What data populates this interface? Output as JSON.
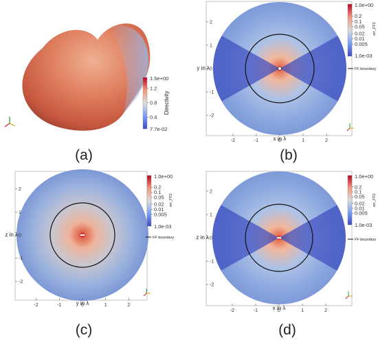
{
  "chart_data": [
    {
      "id": "a",
      "panel_label": "(a)",
      "type": "heatmap",
      "colorbar": {
        "title": "Directivity",
        "max_label": "1.5e+00",
        "min_label": "7.7e-02",
        "ticks": [
          "1.2",
          "0.8",
          "0.4"
        ],
        "tick_values": [
          1.2,
          0.8,
          0.4
        ],
        "range": [
          0.077,
          1.5
        ],
        "scale": "linear"
      }
    },
    {
      "id": "b",
      "panel_label": "(b)",
      "type": "heatmap",
      "xlabel": "x in λ",
      "ylabel": "y in λ",
      "xticks": [
        "-2",
        "-1",
        "0",
        "1",
        "2"
      ],
      "yticks": [
        "2",
        "1",
        "0",
        "-1",
        "-2"
      ],
      "xlim": [
        -2.85,
        2.85
      ],
      "ylim": [
        -2.85,
        2.85
      ],
      "domain_radius": 2.85,
      "boundary_radius": 1.5,
      "pattern": "dipole-x",
      "legend_label": "FF boundary",
      "colorbar": {
        "title": "err_FF2",
        "max_label": "1.0e+00",
        "min_label": "1.0e-03",
        "ticks": [
          "0.2",
          "0.1",
          "0.05",
          "0.02",
          "0.01",
          "0.005"
        ],
        "tick_values": [
          0.2,
          0.1,
          0.05,
          0.02,
          0.01,
          0.005
        ],
        "range": [
          0.001,
          1.0
        ],
        "scale": "log"
      }
    },
    {
      "id": "c",
      "panel_label": "(c)",
      "type": "heatmap",
      "xlabel": "y in λ",
      "ylabel": "z in λ",
      "xticks": [
        "-2",
        "-1",
        "0",
        "1",
        "2"
      ],
      "yticks": [
        "2",
        "1",
        "0",
        "-1",
        "-2"
      ],
      "xlim": [
        -2.85,
        2.85
      ],
      "ylim": [
        -2.85,
        2.85
      ],
      "domain_radius": 2.85,
      "boundary_radius": 1.5,
      "pattern": "radial",
      "legend_label": "FF boundary",
      "colorbar": {
        "title": "err_FF2",
        "max_label": "1.0e+00",
        "min_label": "1.0e-03",
        "ticks": [
          "0.2",
          "0.1",
          "0.05",
          "0.02",
          "0.01",
          "0.005"
        ],
        "tick_values": [
          0.2,
          0.1,
          0.05,
          0.02,
          0.01,
          0.005
        ],
        "range": [
          0.001,
          1.0
        ],
        "scale": "log"
      }
    },
    {
      "id": "d",
      "panel_label": "(d)",
      "type": "heatmap",
      "xlabel": "x in λ",
      "ylabel": "z in λ",
      "xticks": [
        "-2",
        "-1",
        "0",
        "1",
        "2"
      ],
      "yticks": [
        "2",
        "1",
        "0",
        "-1",
        "-2"
      ],
      "xlim": [
        -2.85,
        2.85
      ],
      "ylim": [
        -2.85,
        2.85
      ],
      "domain_radius": 2.85,
      "boundary_radius": 1.5,
      "pattern": "dipole-x",
      "legend_label": "FF boundary",
      "colorbar": {
        "title": "err_FF2",
        "max_label": "1.0e+00",
        "min_label": "1.0e-03",
        "ticks": [
          "0.2",
          "0.1",
          "0.05",
          "0.02",
          "0.01",
          "0.005"
        ],
        "tick_values": [
          0.2,
          0.1,
          0.05,
          0.02,
          0.01,
          0.005
        ],
        "range": [
          0.001,
          1.0
        ],
        "scale": "log"
      }
    }
  ],
  "colors": {
    "cool_dark": "#3b4cc0",
    "cool_mid": "#6f8fdc",
    "neutral": "#dddddd",
    "warm_mid": "#e58a68",
    "warm_dark": "#b40426",
    "boundary": "#111111",
    "frame": "#999999"
  }
}
